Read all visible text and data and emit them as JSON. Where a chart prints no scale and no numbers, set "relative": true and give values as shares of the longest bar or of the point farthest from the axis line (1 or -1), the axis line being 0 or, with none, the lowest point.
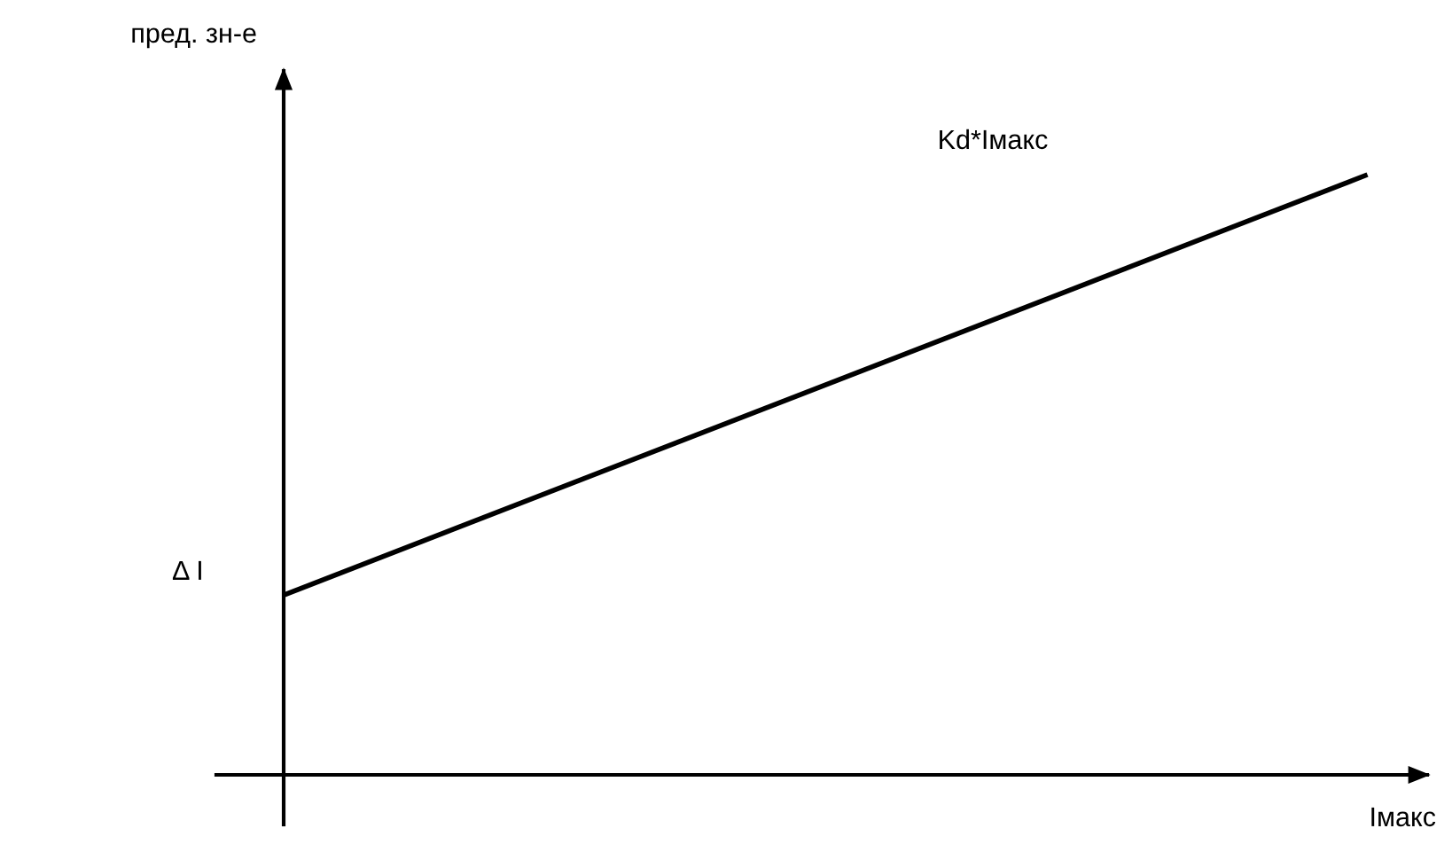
{
  "chart_data": {
    "type": "line",
    "relative": true,
    "xlabel": "Iмакс",
    "ylabel": "пред. зн-е",
    "categories": [
      null,
      null
    ],
    "series": [
      {
        "color": "#000000",
        "values": [
          0.3,
          1
        ]
      }
    ],
    "annotations": [
      "Kd*Iмакс",
      "Δ I"
    ],
    "legend": false,
    "marker": "none",
    "line_style": "solid"
  }
}
